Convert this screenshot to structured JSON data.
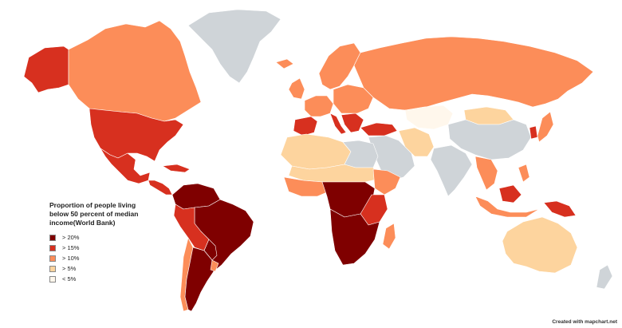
{
  "legend": {
    "title": "Proportion of people living\nbelow 50 percent of median\nincome(World Bank)",
    "items": [
      {
        "label": "> 20%",
        "color": "#7f0000"
      },
      {
        "label": "> 15%",
        "color": "#d7301f"
      },
      {
        "label": "> 10%",
        "color": "#fc8d59"
      },
      {
        "label": "> 5%",
        "color": "#fdd49e"
      },
      {
        "label": "< 5%",
        "color": "#fff7ec"
      }
    ],
    "no_data_color": "#cfd4d8"
  },
  "credit": "Created with mapchart.net",
  "regions": [
    {
      "id": "greenland",
      "class": "no-data"
    },
    {
      "id": "alaska",
      "class": "> 15%"
    },
    {
      "id": "canada",
      "class": "> 10%"
    },
    {
      "id": "usa",
      "class": "> 15%"
    },
    {
      "id": "mexico",
      "class": "> 15%"
    },
    {
      "id": "central-america",
      "class": "> 15%"
    },
    {
      "id": "caribbean",
      "class": "> 15%"
    },
    {
      "id": "brazil",
      "class": "> 20%"
    },
    {
      "id": "colombia-venezuela",
      "class": "> 20%"
    },
    {
      "id": "peru-bolivia",
      "class": "> 15%"
    },
    {
      "id": "paraguay",
      "class": "> 20%"
    },
    {
      "id": "chile",
      "class": "> 10%"
    },
    {
      "id": "argentina",
      "class": "> 20%"
    },
    {
      "id": "uruguay",
      "class": "> 10%"
    },
    {
      "id": "russia",
      "class": "> 10%"
    },
    {
      "id": "scandinavia",
      "class": "> 10%"
    },
    {
      "id": "iceland",
      "class": "> 10%"
    },
    {
      "id": "uk-ireland",
      "class": "> 10%"
    },
    {
      "id": "western-europe",
      "class": "> 10%"
    },
    {
      "id": "iberia",
      "class": "> 15%"
    },
    {
      "id": "italy",
      "class": "> 15%"
    },
    {
      "id": "balkans",
      "class": "> 15%"
    },
    {
      "id": "eastern-europe",
      "class": "> 10%"
    },
    {
      "id": "turkey",
      "class": "> 15%"
    },
    {
      "id": "north-africa-west",
      "class": "> 5%"
    },
    {
      "id": "north-africa-east",
      "class": "no-data"
    },
    {
      "id": "sahel",
      "class": "> 5%"
    },
    {
      "id": "west-africa",
      "class": "> 10%"
    },
    {
      "id": "central-africa",
      "class": "> 20%"
    },
    {
      "id": "east-africa",
      "class": "> 15%"
    },
    {
      "id": "horn-of-africa",
      "class": "> 10%"
    },
    {
      "id": "southern-africa",
      "class": "> 20%"
    },
    {
      "id": "madagascar",
      "class": "> 10%"
    },
    {
      "id": "middle-east",
      "class": "no-data"
    },
    {
      "id": "iran",
      "class": "> 5%"
    },
    {
      "id": "central-asia",
      "class": "< 5%"
    },
    {
      "id": "mongolia",
      "class": "> 5%"
    },
    {
      "id": "china",
      "class": "no-data"
    },
    {
      "id": "india",
      "class": "no-data"
    },
    {
      "id": "southeast-asia",
      "class": "> 10%"
    },
    {
      "id": "indonesia",
      "class": "> 10%"
    },
    {
      "id": "borneo",
      "class": "> 15%"
    },
    {
      "id": "papua-new-guinea",
      "class": "> 15%"
    },
    {
      "id": "japan",
      "class": "> 10%"
    },
    {
      "id": "korea",
      "class": "> 15%"
    },
    {
      "id": "philippines",
      "class": "> 10%"
    },
    {
      "id": "australia",
      "class": "> 5%"
    },
    {
      "id": "new-zealand",
      "class": "no-data"
    }
  ]
}
